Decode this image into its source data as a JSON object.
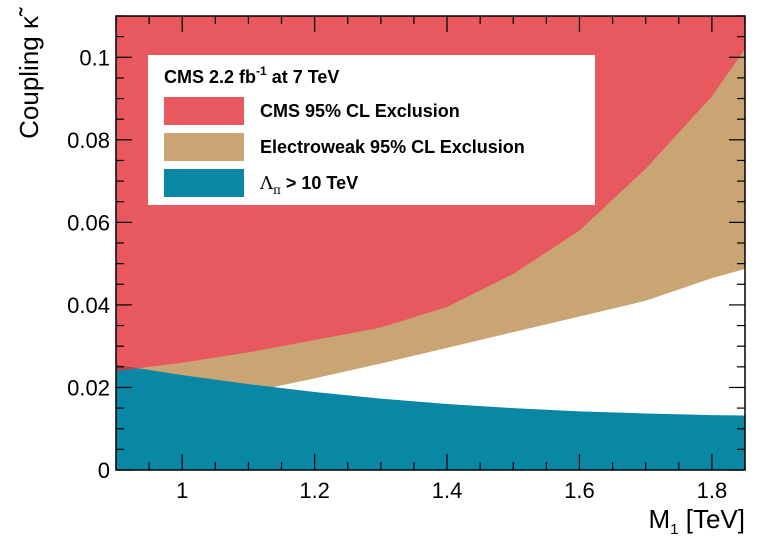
{
  "chart_data": {
    "type": "area",
    "xlabel": "M",
    "xlabel_sub": "1",
    "xlabel_unit": " [TeV]",
    "ylabel": "Coupling",
    "ylabel_symbol": "κ̃",
    "xlim": [
      0.9,
      1.85
    ],
    "ylim": [
      0,
      0.11
    ],
    "x_ticks": [
      1,
      1.2,
      1.4,
      1.6,
      1.8
    ],
    "x_tick_labels": [
      "1",
      "1.2",
      "1.4",
      "1.6",
      "1.8"
    ],
    "y_ticks": [
      0,
      0.02,
      0.04,
      0.06,
      0.08,
      0.1
    ],
    "y_tick_labels": [
      "0",
      "0.02",
      "0.04",
      "0.06",
      "0.08",
      "0.1"
    ],
    "legend": {
      "header_prefix": "CMS 2.2 fb",
      "header_sup": "-1",
      "header_suffix": " at 7 TeV",
      "placement": "top-left"
    },
    "series": [
      {
        "name": "CMS 95% CL Exclusion",
        "label_text": "CMS 95% CL Exclusion",
        "color": "#e7595f",
        "kind": "above",
        "x": [
          0.9,
          1.0,
          1.1,
          1.2,
          1.3,
          1.4,
          1.5,
          1.6,
          1.7,
          1.8,
          1.85
        ],
        "y": [
          0.024,
          0.026,
          0.0285,
          0.0315,
          0.0345,
          0.0395,
          0.0475,
          0.058,
          0.073,
          0.0905,
          0.102
        ]
      },
      {
        "name": "Electroweak 95% CL Exclusion",
        "label_text": "Electroweak 95% CL Exclusion",
        "color": "#c9a574",
        "kind": "above",
        "x": [
          0.9,
          1.0,
          1.1,
          1.2,
          1.3,
          1.4,
          1.5,
          1.6,
          1.7,
          1.8,
          1.85
        ],
        "y": [
          0.012,
          0.0155,
          0.0188,
          0.0222,
          0.0258,
          0.0296,
          0.0334,
          0.0372,
          0.041,
          0.0465,
          0.0487
        ]
      },
      {
        "name": "Λπ > 10 TeV",
        "label_symbol": "Λ",
        "label_sub": "π",
        "label_suffix": " > 10 TeV",
        "color": "#0a87a5",
        "kind": "below",
        "x": [
          0.9,
          1.0,
          1.1,
          1.2,
          1.3,
          1.4,
          1.5,
          1.6,
          1.7,
          1.8,
          1.85
        ],
        "y": [
          0.0255,
          0.023,
          0.0208,
          0.0189,
          0.0173,
          0.016,
          0.015,
          0.0142,
          0.0137,
          0.0133,
          0.0132
        ]
      }
    ],
    "overlap_color": "#a8434f"
  }
}
